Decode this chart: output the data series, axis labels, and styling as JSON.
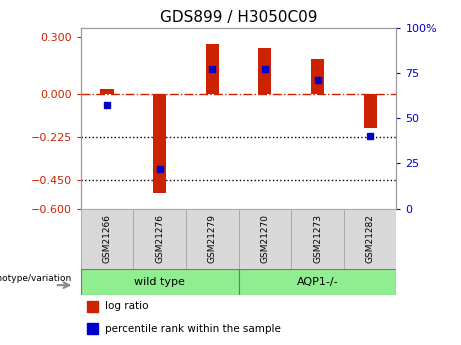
{
  "title": "GDS899 / H3050C09",
  "categories": [
    "GSM21266",
    "GSM21276",
    "GSM21279",
    "GSM21270",
    "GSM21273",
    "GSM21282"
  ],
  "log_ratios": [
    0.03,
    -0.52,
    0.265,
    0.245,
    0.185,
    -0.175
  ],
  "percentile_ranks": [
    57,
    22,
    77,
    77,
    71,
    40
  ],
  "bar_color": "#cc2200",
  "dot_color": "#0000cc",
  "ylim_left": [
    -0.6,
    0.35
  ],
  "ylim_right": [
    0,
    100
  ],
  "yticks_left": [
    0.3,
    0,
    -0.225,
    -0.45,
    -0.6
  ],
  "yticks_right": [
    100,
    75,
    50,
    25,
    0
  ],
  "hline_dotted": [
    -0.225,
    -0.45
  ],
  "title_fontsize": 11,
  "legend_items": [
    "log ratio",
    "percentile rank within the sample"
  ],
  "genotype_label": "genotype/variation",
  "wildtype_color": "#90ee90",
  "aqp1_color": "#90ee90",
  "sample_box_color": "#d8d8d8",
  "bar_width": 0.25
}
